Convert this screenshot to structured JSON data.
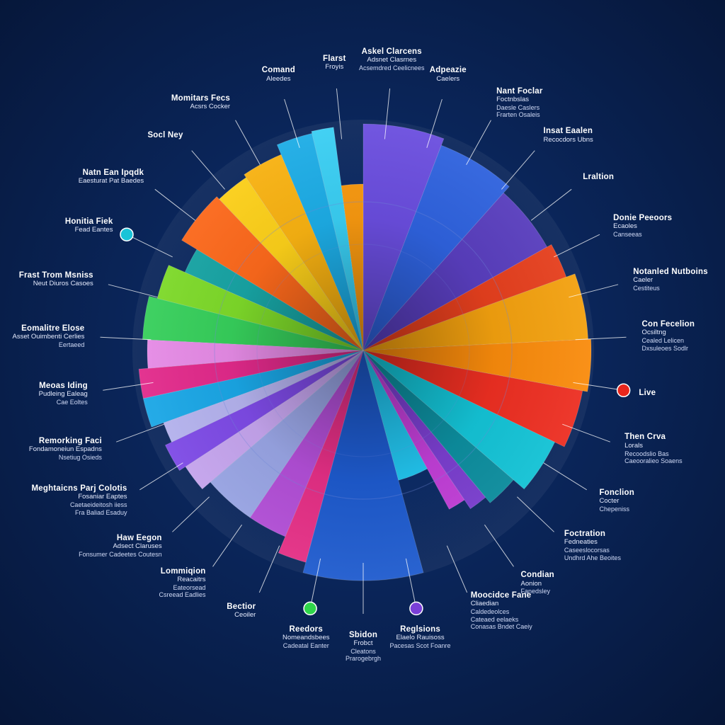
{
  "chart_data": {
    "type": "pie",
    "title": "",
    "colors": {
      "background": "#0a2559",
      "ring": "#6f86d6"
    },
    "slices": [
      {
        "value": 11,
        "color": "#6b4ee0",
        "r": 320
      },
      {
        "value": 11,
        "color": "#2f63e0",
        "r": 310
      },
      {
        "value": 10,
        "color": "#5a3fc0",
        "r": 298
      },
      {
        "value": 5,
        "color": "#e8401e",
        "r": 305
      },
      {
        "value": 9,
        "color": "#f5a20f",
        "r": 318
      },
      {
        "value": 7,
        "color": "#fb8c0c",
        "r": 322
      },
      {
        "value": 8,
        "color": "#ef2f22",
        "r": 315
      },
      {
        "value": 8,
        "color": "#14c5d8",
        "r": 300
      },
      {
        "value": 5,
        "color": "#0d8fa0",
        "r": 280
      },
      {
        "value": 3,
        "color": "#7b3fd0",
        "r": 270
      },
      {
        "value": 3,
        "color": "#c23fd8",
        "r": 255
      },
      {
        "value": 7,
        "color": "#22c4ee",
        "r": 190
      },
      {
        "value": 16,
        "color": "#1e5bcf",
        "r": 325
      },
      {
        "value": 4,
        "color": "#e62f86",
        "r": 310
      },
      {
        "value": 6,
        "color": "#b34fd8",
        "r": 285
      },
      {
        "value": 8,
        "color": "#9aa6e6",
        "r": 285
      },
      {
        "value": 4,
        "color": "#c7a6f0",
        "r": 300
      },
      {
        "value": 4,
        "color": "#7f4be8",
        "r": 310
      },
      {
        "value": 3,
        "color": "#b6b4f0",
        "r": 300
      },
      {
        "value": 4,
        "color": "#1aa8e8",
        "r": 318
      },
      {
        "value": 4,
        "color": "#e42a8c",
        "r": 318
      },
      {
        "value": 4,
        "color": "#e88ce8",
        "r": 305
      },
      {
        "value": 6,
        "color": "#37d15c",
        "r": 312
      },
      {
        "value": 5,
        "color": "#7fdc2a",
        "r": 300
      },
      {
        "value": 4,
        "color": "#18a6a6",
        "r": 275
      },
      {
        "value": 8,
        "color": "#ff6a1c",
        "r": 300
      },
      {
        "value": 5,
        "color": "#ffd21a",
        "r": 295
      },
      {
        "value": 6,
        "color": "#fbb412",
        "r": 300
      },
      {
        "value": 5,
        "color": "#1daee8",
        "r": 315
      },
      {
        "value": 3,
        "color": "#3ad0f5",
        "r": 318
      },
      {
        "value": 4,
        "color": "#fa9a10",
        "r": 235
      }
    ],
    "labels": [
      {
        "lines": [
          "Askel Clarcens",
          "Adsnet Clasrnes",
          "Acsemdred Ceelicnees"
        ]
      },
      {
        "lines": [
          "Adpeazie",
          "Caelers"
        ]
      },
      {
        "lines": [
          "Nant Foclar",
          "Foctnbslas",
          "Daesle Caslers",
          "Frarten Osaleis"
        ]
      },
      {
        "lines": [
          "Insat Eaalen",
          "Recocdors Ubns"
        ]
      },
      {
        "lines": [
          "Lraltion"
        ]
      },
      {
        "lines": [
          "Donie Peeoors",
          "Ecaoles",
          "Canseeas"
        ]
      },
      {
        "lines": [
          "Notanled Nutboins",
          "Caeler",
          "Cestiteus"
        ]
      },
      {
        "lines": [
          "Con Fecelion",
          "Ocsiltng",
          "Cealed Lelicen",
          "Dxsuleoes Sodlr"
        ]
      },
      {
        "lines": [
          "Live"
        ]
      },
      {
        "lines": [
          "Then Crva",
          "Lorals",
          "Recoodslio Bas",
          "Caeooralieo Soaens"
        ]
      },
      {
        "lines": [
          "Fonclion",
          "Cocter",
          "Chepeniss"
        ]
      },
      {
        "lines": [
          "Foctration",
          "Fedneaties",
          "Caseeslocorsas",
          "Undhrd Ahe Beoites"
        ]
      },
      {
        "lines": [
          "Condian",
          "Aonion",
          "Fanedsley"
        ]
      },
      {
        "lines": [
          "Moocidce Fane",
          "Cliaedian",
          "Caldedeolces",
          "Cateaed eelaeks",
          "Conasas Bndet Caeiy"
        ]
      },
      {
        "lines": [
          "Reglsions",
          "Elaelo Rauisoss",
          "Pacesas Scot Foanre"
        ]
      },
      {
        "lines": [
          "Sbidon",
          "Frobct",
          "Cleatons",
          "Prarogebrgh"
        ]
      },
      {
        "lines": [
          "Reedors",
          "Nomeandsbees",
          "Cadeatal Eanter"
        ]
      },
      {
        "lines": [
          "Bectior",
          "Ceoiler"
        ]
      },
      {
        "lines": [
          "Lommiqion",
          "Reacaitrs",
          "Eateorsead",
          "Csreead Eadlies"
        ]
      },
      {
        "lines": [
          "Haw Eegon",
          "Adsect Claruses",
          "Fonsumer Cadeetes Coutesn"
        ]
      },
      {
        "lines": [
          "Meghtaicns Parj Colotis",
          "Fosaniar Eaptes",
          "Caetaeideitosh iiess",
          "Fra Baliad Esaduy"
        ]
      },
      {
        "lines": [
          "Remorking Faci",
          "Fondamoneiun Espadns",
          "Nsetiug Osieds"
        ]
      },
      {
        "lines": [
          "Meoas Iding",
          "Pudleing Ealeag",
          "Cae Eoltes"
        ]
      },
      {
        "lines": [
          "Eomalitre Elose",
          "Asset Ouimbenti Cerlies",
          "Eertaeed"
        ]
      },
      {
        "lines": [
          "Frast Trom Msniss",
          "Neut Diuros Casoes"
        ]
      },
      {
        "lines": [
          "Honitia Fiek",
          "Fead Eantes"
        ]
      },
      {
        "lines": [
          "Natn Ean Ipqdk",
          "Eaesturat Pat Baedes"
        ]
      },
      {
        "lines": [
          "Socl Ney"
        ]
      },
      {
        "lines": [
          "Momitars Fecs",
          "Acsrs Cocker"
        ]
      },
      {
        "lines": [
          "Comand",
          "Aleedes"
        ]
      },
      {
        "lines": [
          "Flarst",
          "Froyis"
        ]
      }
    ],
    "markers": [
      {
        "color": "#19c3d8"
      },
      {
        "color": "#e8261c"
      },
      {
        "color": "#7a3fd8"
      },
      {
        "color": "#2fd64a"
      }
    ]
  }
}
